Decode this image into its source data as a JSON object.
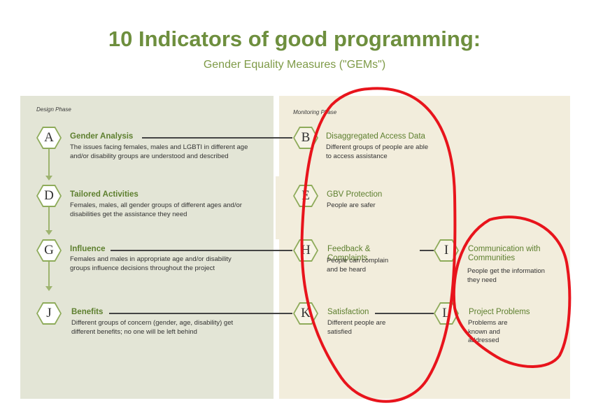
{
  "title": "10 Indicators of good programming:",
  "subtitle": "Gender Equality Measures (\"GEMs\")",
  "phases": {
    "design": "Design Phase",
    "monitoring": "Monitoring Phase"
  },
  "items": {
    "A": {
      "letter": "A",
      "title": "Gender Analysis",
      "desc": "The issues facing females, males and LGBTI in different age and/or disability groups are understood and described"
    },
    "D": {
      "letter": "D",
      "title": "Tailored Activities",
      "desc": "Females, males, all gender groups of different ages and/or disabilities get the assistance they need"
    },
    "G": {
      "letter": "G",
      "title": "Influence",
      "desc": "Females and males in appropriate age and/or disability groups influence decisions throughout the project"
    },
    "J": {
      "letter": "J",
      "title": "Benefits",
      "desc": "Different groups of concern (gender, age, disability) get different benefits; no one will be left behind"
    },
    "B": {
      "letter": "B",
      "title": "Disaggregated Access Data",
      "desc": "Different groups of people are able to access assistance"
    },
    "E": {
      "letter": "E",
      "title": "GBV Protection",
      "desc": "People are safer"
    },
    "H": {
      "letter": "H",
      "title": "Feedback & Complaints",
      "desc": "People can complain and be heard"
    },
    "K": {
      "letter": "K",
      "title": "Satisfaction",
      "desc": "Different people are satisfied"
    },
    "I": {
      "letter": "I",
      "title": "Communication with Communities",
      "desc": "People get the information they need"
    },
    "L": {
      "letter": "L",
      "title": "Project Problems",
      "desc": "Problems are known and addressed"
    }
  },
  "colors": {
    "accent": "#6e8f3e",
    "hex_border": "#8eab5a",
    "design_panel": "#e3e5d6",
    "monitoring_panel": "#f2eddc",
    "annotation": "#e8141c"
  }
}
